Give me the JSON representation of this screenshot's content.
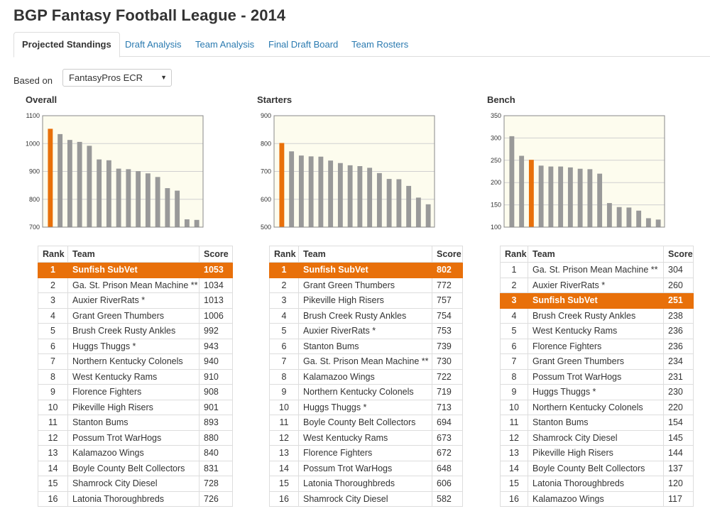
{
  "page_title": "BGP Fantasy Football League - 2014",
  "tabs": [
    {
      "label": "Projected Standings",
      "active": true
    },
    {
      "label": "Draft Analysis",
      "active": false
    },
    {
      "label": "Team Analysis",
      "active": false
    },
    {
      "label": "Final Draft Board",
      "active": false
    },
    {
      "label": "Team Rosters",
      "active": false
    }
  ],
  "based_on": {
    "label": "Based on",
    "selected": "FantasyPros ECR"
  },
  "colors": {
    "highlight": "#e8700a",
    "bar": "#999999",
    "plot_bg": "#fdfcee",
    "link": "#2a7ab0"
  },
  "table_headers": {
    "rank": "Rank",
    "team": "Team",
    "score": "Score"
  },
  "panels": [
    {
      "title": "Overall",
      "ylim": [
        700,
        1100
      ],
      "yticks": [
        "700",
        "800",
        "900",
        "1000",
        "1100"
      ],
      "rows": [
        {
          "rank": "1",
          "team": "Sunfish SubVet",
          "score": "1053",
          "highlight": true
        },
        {
          "rank": "2",
          "team": "Ga. St. Prison Mean Machine **",
          "score": "1034"
        },
        {
          "rank": "3",
          "team": "Auxier RiverRats *",
          "score": "1013"
        },
        {
          "rank": "4",
          "team": "Grant Green Thumbers",
          "score": "1006"
        },
        {
          "rank": "5",
          "team": "Brush Creek Rusty Ankles",
          "score": "992"
        },
        {
          "rank": "6",
          "team": "Huggs Thuggs *",
          "score": "943"
        },
        {
          "rank": "7",
          "team": "Northern Kentucky Colonels",
          "score": "940"
        },
        {
          "rank": "8",
          "team": "West Kentucky Rams",
          "score": "910"
        },
        {
          "rank": "9",
          "team": "Florence Fighters",
          "score": "908"
        },
        {
          "rank": "10",
          "team": "Pikeville High Risers",
          "score": "901"
        },
        {
          "rank": "11",
          "team": "Stanton Bums",
          "score": "893"
        },
        {
          "rank": "12",
          "team": "Possum Trot WarHogs",
          "score": "880"
        },
        {
          "rank": "13",
          "team": "Kalamazoo Wings",
          "score": "840"
        },
        {
          "rank": "14",
          "team": "Boyle County Belt Collectors",
          "score": "831"
        },
        {
          "rank": "15",
          "team": "Shamrock City Diesel",
          "score": "728"
        },
        {
          "rank": "16",
          "team": "Latonia Thoroughbreds",
          "score": "726"
        }
      ]
    },
    {
      "title": "Starters",
      "ylim": [
        500,
        900
      ],
      "yticks": [
        "500",
        "600",
        "700",
        "800",
        "900"
      ],
      "rows": [
        {
          "rank": "1",
          "team": "Sunfish SubVet",
          "score": "802",
          "highlight": true
        },
        {
          "rank": "2",
          "team": "Grant Green Thumbers",
          "score": "772"
        },
        {
          "rank": "3",
          "team": "Pikeville High Risers",
          "score": "757"
        },
        {
          "rank": "4",
          "team": "Brush Creek Rusty Ankles",
          "score": "754"
        },
        {
          "rank": "5",
          "team": "Auxier RiverRats *",
          "score": "753"
        },
        {
          "rank": "6",
          "team": "Stanton Bums",
          "score": "739"
        },
        {
          "rank": "7",
          "team": "Ga. St. Prison Mean Machine **",
          "score": "730"
        },
        {
          "rank": "8",
          "team": "Kalamazoo Wings",
          "score": "722"
        },
        {
          "rank": "9",
          "team": "Northern Kentucky Colonels",
          "score": "719"
        },
        {
          "rank": "10",
          "team": "Huggs Thuggs *",
          "score": "713"
        },
        {
          "rank": "11",
          "team": "Boyle County Belt Collectors",
          "score": "694"
        },
        {
          "rank": "12",
          "team": "West Kentucky Rams",
          "score": "673"
        },
        {
          "rank": "13",
          "team": "Florence Fighters",
          "score": "672"
        },
        {
          "rank": "14",
          "team": "Possum Trot WarHogs",
          "score": "648"
        },
        {
          "rank": "15",
          "team": "Latonia Thoroughbreds",
          "score": "606"
        },
        {
          "rank": "16",
          "team": "Shamrock City Diesel",
          "score": "582"
        }
      ]
    },
    {
      "title": "Bench",
      "ylim": [
        100,
        350
      ],
      "yticks": [
        "100",
        "150",
        "200",
        "250",
        "300",
        "350"
      ],
      "rows": [
        {
          "rank": "1",
          "team": "Ga. St. Prison Mean Machine **",
          "score": "304"
        },
        {
          "rank": "2",
          "team": "Auxier RiverRats *",
          "score": "260"
        },
        {
          "rank": "3",
          "team": "Sunfish SubVet",
          "score": "251",
          "highlight": true
        },
        {
          "rank": "4",
          "team": "Brush Creek Rusty Ankles",
          "score": "238"
        },
        {
          "rank": "5",
          "team": "West Kentucky Rams",
          "score": "236"
        },
        {
          "rank": "6",
          "team": "Florence Fighters",
          "score": "236"
        },
        {
          "rank": "7",
          "team": "Grant Green Thumbers",
          "score": "234"
        },
        {
          "rank": "8",
          "team": "Possum Trot WarHogs",
          "score": "231"
        },
        {
          "rank": "9",
          "team": "Huggs Thuggs *",
          "score": "230"
        },
        {
          "rank": "10",
          "team": "Northern Kentucky Colonels",
          "score": "220"
        },
        {
          "rank": "11",
          "team": "Stanton Bums",
          "score": "154"
        },
        {
          "rank": "12",
          "team": "Shamrock City Diesel",
          "score": "145"
        },
        {
          "rank": "13",
          "team": "Pikeville High Risers",
          "score": "144"
        },
        {
          "rank": "14",
          "team": "Boyle County Belt Collectors",
          "score": "137"
        },
        {
          "rank": "15",
          "team": "Latonia Thoroughbreds",
          "score": "120"
        },
        {
          "rank": "16",
          "team": "Kalamazoo Wings",
          "score": "117"
        }
      ]
    }
  ],
  "chart_data": [
    {
      "type": "bar",
      "title": "Overall",
      "categories": [
        "Sunfish SubVet",
        "Ga. St. Prison Mean Machine **",
        "Auxier RiverRats *",
        "Grant Green Thumbers",
        "Brush Creek Rusty Ankles",
        "Huggs Thuggs *",
        "Northern Kentucky Colonels",
        "West Kentucky Rams",
        "Florence Fighters",
        "Pikeville High Risers",
        "Stanton Bums",
        "Possum Trot WarHogs",
        "Kalamazoo Wings",
        "Boyle County Belt Collectors",
        "Shamrock City Diesel",
        "Latonia Thoroughbreds"
      ],
      "values": [
        1053,
        1034,
        1013,
        1006,
        992,
        943,
        940,
        910,
        908,
        901,
        893,
        880,
        840,
        831,
        728,
        726
      ],
      "highlight_index": 0,
      "ylim": [
        700,
        1100
      ],
      "grid": true
    },
    {
      "type": "bar",
      "title": "Starters",
      "categories": [
        "Sunfish SubVet",
        "Grant Green Thumbers",
        "Pikeville High Risers",
        "Brush Creek Rusty Ankles",
        "Auxier RiverRats *",
        "Stanton Bums",
        "Ga. St. Prison Mean Machine **",
        "Kalamazoo Wings",
        "Northern Kentucky Colonels",
        "Huggs Thuggs *",
        "Boyle County Belt Collectors",
        "West Kentucky Rams",
        "Florence Fighters",
        "Possum Trot WarHogs",
        "Latonia Thoroughbreds",
        "Shamrock City Diesel"
      ],
      "values": [
        802,
        772,
        757,
        754,
        753,
        739,
        730,
        722,
        719,
        713,
        694,
        673,
        672,
        648,
        606,
        582
      ],
      "highlight_index": 0,
      "ylim": [
        500,
        900
      ],
      "grid": true
    },
    {
      "type": "bar",
      "title": "Bench",
      "categories": [
        "Ga. St. Prison Mean Machine **",
        "Auxier RiverRats *",
        "Sunfish SubVet",
        "Brush Creek Rusty Ankles",
        "West Kentucky Rams",
        "Florence Fighters",
        "Grant Green Thumbers",
        "Possum Trot WarHogs",
        "Huggs Thuggs *",
        "Northern Kentucky Colonels",
        "Stanton Bums",
        "Shamrock City Diesel",
        "Pikeville High Risers",
        "Boyle County Belt Collectors",
        "Latonia Thoroughbreds",
        "Kalamazoo Wings"
      ],
      "values": [
        304,
        260,
        251,
        238,
        236,
        236,
        234,
        231,
        230,
        220,
        154,
        145,
        144,
        137,
        120,
        117
      ],
      "highlight_index": 2,
      "ylim": [
        100,
        350
      ],
      "grid": true
    }
  ]
}
